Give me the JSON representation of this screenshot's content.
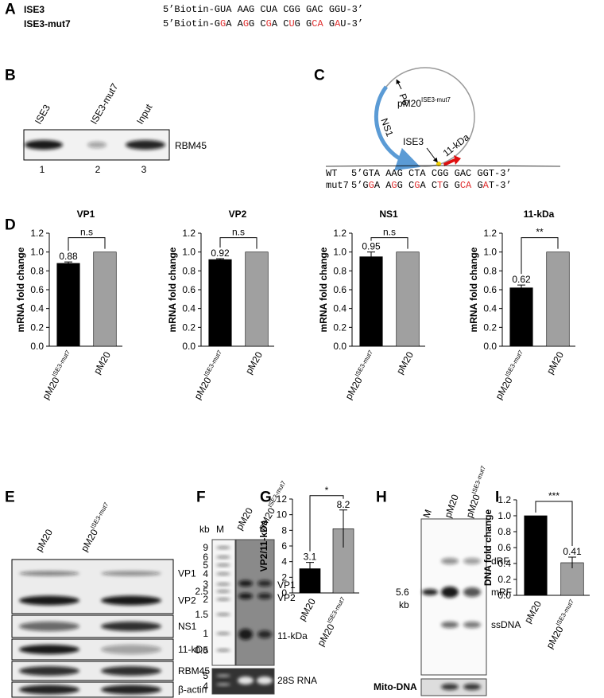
{
  "panel_letters": [
    "A",
    "B",
    "C",
    "D",
    "E",
    "F",
    "G",
    "H",
    "I"
  ],
  "panel_a": {
    "rows": [
      {
        "name": "ISE3",
        "sequence": [
          {
            "text": "5’Biotin-GUA AAG CUA CGG GAC GGU-3’",
            "mutated": false
          }
        ]
      },
      {
        "name": "ISE3-mut7",
        "sequence": [
          {
            "text": "5’Biotin-G",
            "mutated": false
          },
          {
            "text": "G",
            "mutated": true
          },
          {
            "text": "A A",
            "mutated": false
          },
          {
            "text": "G",
            "mutated": true
          },
          {
            "text": "G C",
            "mutated": false
          },
          {
            "text": "G",
            "mutated": true
          },
          {
            "text": "A C",
            "mutated": false
          },
          {
            "text": "U",
            "mutated": true
          },
          {
            "text": "G G",
            "mutated": false
          },
          {
            "text": "CA",
            "mutated": true
          },
          {
            "text": " G",
            "mutated": false
          },
          {
            "text": "A",
            "mutated": true
          },
          {
            "text": "U-3’",
            "mutated": false
          }
        ]
      }
    ]
  },
  "panel_b": {
    "lanes": [
      "ISE3",
      "ISE3-mut7",
      "Input"
    ],
    "lane_numbers": [
      1,
      2,
      3
    ],
    "band": "RBM45"
  },
  "panel_c": {
    "plasmid": {
      "label": "pM20",
      "sup": "ISE3-mut7"
    },
    "features": [
      "P6",
      "NS1",
      "ISE3",
      "11-kDa"
    ],
    "sequences": [
      {
        "name": "WT",
        "sequence": [
          {
            "text": "5’GTA AAG CTA CGG GAC GGT-3’",
            "mutated": false
          }
        ]
      },
      {
        "name": "mut7",
        "sequence": [
          {
            "text": "5’G",
            "mutated": false
          },
          {
            "text": "G",
            "mutated": true
          },
          {
            "text": "A A",
            "mutated": false
          },
          {
            "text": "G",
            "mutated": true
          },
          {
            "text": "G C",
            "mutated": false
          },
          {
            "text": "G",
            "mutated": true
          },
          {
            "text": "A C",
            "mutated": false
          },
          {
            "text": "T",
            "mutated": true
          },
          {
            "text": "G G",
            "mutated": false
          },
          {
            "text": "CA",
            "mutated": true
          },
          {
            "text": " G",
            "mutated": false
          },
          {
            "text": "A",
            "mutated": true
          },
          {
            "text": "T-3’",
            "mutated": false
          }
        ]
      }
    ]
  },
  "panel_e": {
    "lanes": [
      {
        "label": "pM20"
      },
      {
        "label": "pM20",
        "sup": "ISE3-mut7"
      }
    ],
    "bands": [
      "VP1",
      "VP2",
      "NS1",
      "11-kDa",
      "RBM45",
      "β-actin"
    ]
  },
  "panel_f": {
    "unit": "kb",
    "lanes": [
      {
        "label": "M"
      },
      {
        "label": "pM20"
      },
      {
        "label": "pM20",
        "sup": "ISE3-mut7"
      }
    ],
    "ladder": [
      "9",
      "6",
      "5",
      "4",
      "3",
      "2.5",
      "2",
      "1.5",
      "1",
      "0.5"
    ],
    "bands": [
      "VP1",
      "VP2",
      "11-kDa"
    ],
    "loading_ladder": [
      "5",
      "4"
    ],
    "loading": "28S RNA"
  },
  "panel_h": {
    "lanes": [
      {
        "label": "M"
      },
      {
        "label": "pM20"
      },
      {
        "label": "pM20",
        "sup": "ISE3-mut7"
      }
    ],
    "marker_size": "5.6",
    "marker_unit": "kb",
    "bands": [
      "dRF",
      "mRF",
      "ssDNA"
    ],
    "loading": "Mito-DNA"
  },
  "chart_data": [
    {
      "type": "bar",
      "title": "VP1",
      "ylabel": "mRNA fold change",
      "categories": [
        {
          "label": "pM20",
          "sup": "ISE3-mut7"
        },
        {
          "label": "pM20"
        }
      ],
      "values": [
        0.88,
        1.0
      ],
      "errors": [
        0.015,
        null
      ],
      "value_labels": [
        "0.88",
        null
      ],
      "colors": [
        "#000000",
        "#a0a0a0"
      ],
      "significance": "n.s",
      "ylim": [
        0,
        1.2
      ],
      "yticks": [
        {
          "value": 0,
          "label": "0.0"
        },
        0.2,
        0.4,
        0.6,
        0.8,
        {
          "value": 1,
          "label": "1.0"
        },
        1.2
      ]
    },
    {
      "type": "bar",
      "title": "VP2",
      "ylabel": "mRNA fold change",
      "categories": [
        {
          "label": "pM20",
          "sup": "ISE3-mut7"
        },
        {
          "label": "pM20"
        }
      ],
      "values": [
        0.92,
        1.0
      ],
      "errors": [
        0.01,
        null
      ],
      "value_labels": [
        "0.92",
        null
      ],
      "colors": [
        "#000000",
        "#a0a0a0"
      ],
      "significance": "n.s",
      "ylim": [
        0,
        1.2
      ],
      "yticks": [
        {
          "value": 0,
          "label": "0.0"
        },
        0.2,
        0.4,
        0.6,
        0.8,
        {
          "value": 1,
          "label": "1.0"
        },
        1.2
      ]
    },
    {
      "type": "bar",
      "title": "NS1",
      "ylabel": "mRNA fold change",
      "categories": [
        {
          "label": "pM20",
          "sup": "ISE3-mut7"
        },
        {
          "label": "pM20"
        }
      ],
      "values": [
        0.95,
        1.0
      ],
      "errors": [
        0.05,
        null
      ],
      "value_labels": [
        "0.95",
        null
      ],
      "colors": [
        "#000000",
        "#a0a0a0"
      ],
      "significance": "n.s",
      "ylim": [
        0,
        1.2
      ],
      "yticks": [
        {
          "value": 0,
          "label": "0.0"
        },
        0.2,
        0.4,
        0.6,
        0.8,
        {
          "value": 1,
          "label": "1.0"
        },
        1.2
      ]
    },
    {
      "type": "bar",
      "title": "11-kDa",
      "ylabel": "mRNA fold change",
      "categories": [
        {
          "label": "pM20",
          "sup": "ISE3-mut7"
        },
        {
          "label": "pM20"
        }
      ],
      "values": [
        0.62,
        1.0
      ],
      "errors": [
        0.03,
        null
      ],
      "value_labels": [
        "0.62",
        null
      ],
      "colors": [
        "#000000",
        "#a0a0a0"
      ],
      "significance": "**",
      "ylim": [
        0,
        1.2
      ],
      "yticks": [
        {
          "value": 0,
          "label": "0.0"
        },
        0.2,
        0.4,
        0.6,
        0.8,
        {
          "value": 1,
          "label": "1.0"
        },
        1.2
      ]
    },
    {
      "type": "bar",
      "ylabel": "VP2/11-kDa",
      "categories": [
        {
          "label": "pM20"
        },
        {
          "label": "pM20",
          "sup": "ISE3-mut7"
        }
      ],
      "values": [
        3.1,
        8.2
      ],
      "errors": [
        0.8,
        2.4
      ],
      "value_labels": [
        "3.1",
        "8.2"
      ],
      "colors": [
        "#000000",
        "#a0a0a0"
      ],
      "significance": "*",
      "ylim": [
        0,
        12
      ],
      "yticks": [
        0,
        2,
        4,
        6,
        8,
        10,
        12
      ]
    },
    {
      "type": "bar",
      "ylabel": "DNA fold change",
      "categories": [
        {
          "label": "pM20"
        },
        {
          "label": "pM20",
          "sup": "ISE3-mut7"
        }
      ],
      "values": [
        1.0,
        0.41
      ],
      "errors": [
        null,
        0.07
      ],
      "value_labels": [
        null,
        "0.41"
      ],
      "colors": [
        "#000000",
        "#a0a0a0"
      ],
      "significance": "***",
      "ylim": [
        0,
        1.2
      ],
      "yticks": [
        {
          "value": 0,
          "label": "0.0"
        },
        0.2,
        0.4,
        0.6,
        0.8,
        {
          "value": 1,
          "label": "1.0"
        },
        1.2
      ]
    }
  ]
}
